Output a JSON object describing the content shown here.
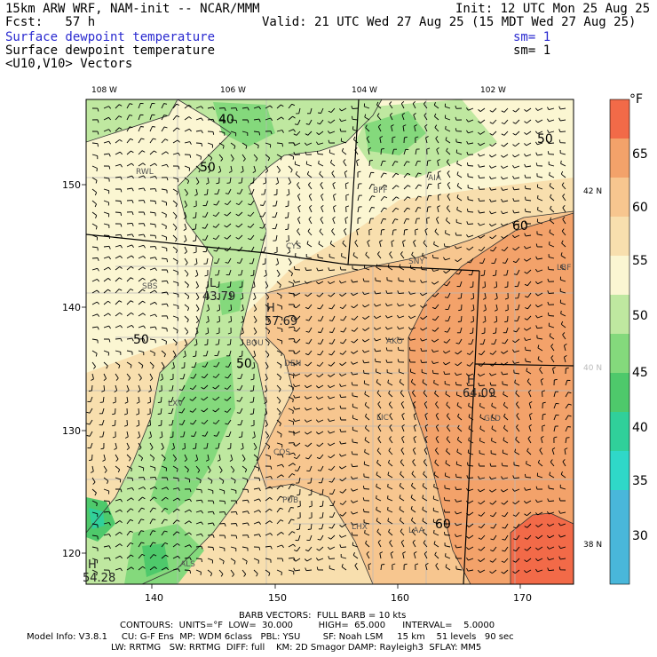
{
  "header": {
    "model": "15km ARW WRF, NAM-init -- NCAR/MMM",
    "init": "Init: 12 UTC Mon 25 Aug 25",
    "fcst": "Fcst:   57 h",
    "valid": "Valid: 21 UTC Wed 27 Aug 25 (15 MDT Wed 27 Aug 25)",
    "field1": "Surface dewpoint temperature",
    "field1_sm": "sm= 1",
    "field2": "Surface dewpoint temperature",
    "field2_sm": "sm= 1",
    "field3": "<U10,V10> Vectors"
  },
  "axes": {
    "top_lon": [
      "108 W",
      "106 W",
      "104 W",
      "102 W"
    ],
    "right_lat": [
      "42 N",
      "40 N",
      "38 N"
    ],
    "left_y": [
      "150",
      "140",
      "130",
      "120"
    ],
    "bottom_x": [
      "140",
      "150",
      "160",
      "170"
    ]
  },
  "colorbar": {
    "unit": "°F",
    "levels": [
      "65",
      "60",
      "55",
      "50",
      "45",
      "40",
      "35",
      "30"
    ],
    "colors": [
      "#f26a48",
      "#f3a26a",
      "#f7c68f",
      "#f8dfae",
      "#fbf6d2",
      "#bfe8a0",
      "#84d97c",
      "#4ec96b",
      "#30d09a",
      "#2fd8c8",
      "#49b7da"
    ]
  },
  "labels": {
    "cities": [
      "RWL",
      "BFF",
      "AIA",
      "CYS",
      "SNY",
      "SBS",
      "BOU",
      "DEN",
      "AKO",
      "LXV",
      "LIC",
      "GLD",
      "COS",
      "PUB",
      "LHX",
      "LAA",
      "ALS",
      "LBF"
    ],
    "contours": [
      "40",
      "50",
      "50",
      "60",
      "50",
      "50",
      "60"
    ],
    "extrema": [
      {
        "letter": "L",
        "value": "43.79"
      },
      {
        "letter": "H",
        "value": "57.69"
      },
      {
        "letter": "H",
        "value": "64.09"
      },
      {
        "letter": "H",
        "value": "54.28"
      }
    ]
  },
  "footer": {
    "barb": "BARB VECTORS:  FULL BARB = 10 kts",
    "contours": "CONTOURS:  UNITS=°F  LOW=  30.000         HIGH=  65.000      INTERVAL=    5.0000",
    "model_info": "Model Info: V3.8.1     CU: G-F Ens  MP: WDM 6class   PBL: YSU        SF: Noah LSM     15 km    51 levels   90 sec",
    "model_info2": "LW: RRTMG   SW: RRTMG  DIFF: full    KM: 2D Smagor DAMP: Rayleigh3  SFLAY: MM5"
  }
}
